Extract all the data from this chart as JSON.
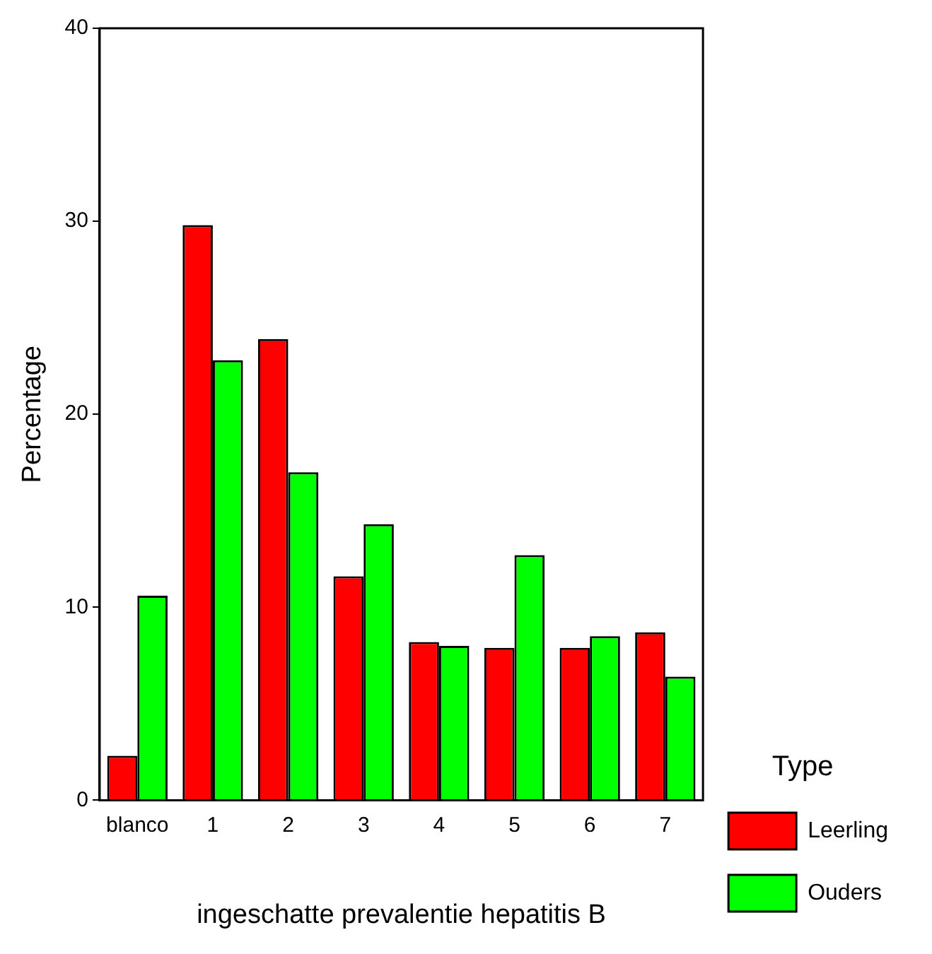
{
  "chart_data": {
    "type": "bar",
    "xlabel": "ingeschatte prevalentie hepatitis B",
    "ylabel": "Percentage",
    "legend_title": "Type",
    "categories": [
      "blanco",
      "1",
      "2",
      "3",
      "4",
      "5",
      "6",
      "7"
    ],
    "series": [
      {
        "name": "Leerling",
        "color": "#ff0000",
        "values": [
          2.3,
          29.8,
          23.9,
          11.6,
          8.2,
          7.9,
          7.9,
          8.7
        ]
      },
      {
        "name": "Ouders",
        "color": "#00ff00",
        "values": [
          10.6,
          22.8,
          17.0,
          14.3,
          8.0,
          12.7,
          8.5,
          6.4
        ]
      }
    ],
    "ylim": [
      0,
      40
    ],
    "yticks": [
      0,
      10,
      20,
      30,
      40
    ],
    "grid": false,
    "legend": "bottom right"
  }
}
